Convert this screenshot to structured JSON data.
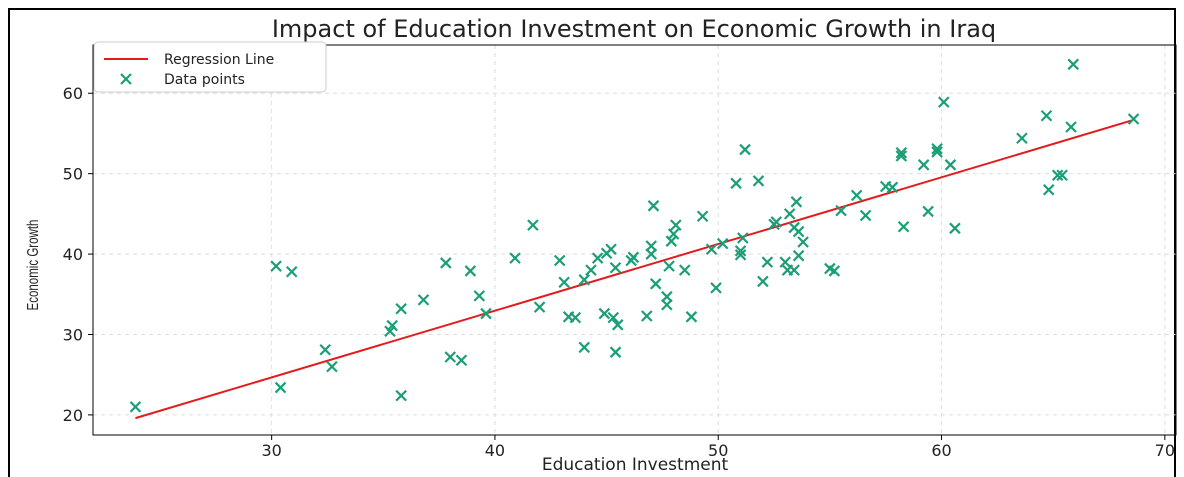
{
  "chart_data": {
    "type": "scatter",
    "title": "Impact of Education Investment on Economic Growth in Iraq",
    "xlabel": "Education Investment",
    "ylabel": "Economic Growth",
    "xlim": [
      22,
      70.5
    ],
    "ylim": [
      17.5,
      66
    ],
    "xticks": [
      30,
      40,
      50,
      60,
      70
    ],
    "yticks": [
      20,
      30,
      40,
      50,
      60
    ],
    "grid": true,
    "legend_position": "top-left",
    "series": [
      {
        "name": "Regression Line",
        "type": "line",
        "color": "#e41a1c",
        "x": [
          23.9,
          68.5
        ],
        "y": [
          19.6,
          56.6
        ]
      },
      {
        "name": "Data points",
        "type": "scatter",
        "marker": "x",
        "color": "#1b9e77",
        "x": [
          23.9,
          30.2,
          30.4,
          30.9,
          32.4,
          32.7,
          35.3,
          35.4,
          35.8,
          35.8,
          36.8,
          37.8,
          38.0,
          38.5,
          38.9,
          39.3,
          39.6,
          40.9,
          41.7,
          42.0,
          42.9,
          43.1,
          43.3,
          43.6,
          44.0,
          44.0,
          44.3,
          44.6,
          44.9,
          45.0,
          45.2,
          45.3,
          45.4,
          45.4,
          45.5,
          46.1,
          46.2,
          46.8,
          47.0,
          47.0,
          47.1,
          47.2,
          47.7,
          47.7,
          47.8,
          47.9,
          48.0,
          48.1,
          48.5,
          48.8,
          49.3,
          49.7,
          49.9,
          50.2,
          50.8,
          51.0,
          51.0,
          51.1,
          51.2,
          51.8,
          52.0,
          52.2,
          52.5,
          52.6,
          53.0,
          53.1,
          53.2,
          53.4,
          53.4,
          53.5,
          53.6,
          53.6,
          53.8,
          55.0,
          55.2,
          55.5,
          56.2,
          56.6,
          57.5,
          57.8,
          58.2,
          58.2,
          58.3,
          59.2,
          59.4,
          59.8,
          59.8,
          60.1,
          60.4,
          60.6,
          63.6,
          64.7,
          64.8,
          65.2,
          65.4,
          65.8,
          65.9,
          68.6
        ],
        "y": [
          21.0,
          38.5,
          23.4,
          37.8,
          28.1,
          26.0,
          30.4,
          31.1,
          22.4,
          33.2,
          34.3,
          38.9,
          27.2,
          26.8,
          37.9,
          34.8,
          32.6,
          39.5,
          43.6,
          33.4,
          39.2,
          36.5,
          32.2,
          32.1,
          28.4,
          36.8,
          38.0,
          39.5,
          32.6,
          40.1,
          40.6,
          32.1,
          27.8,
          38.3,
          31.2,
          39.2,
          39.6,
          32.3,
          41.0,
          40.0,
          46.0,
          36.3,
          33.7,
          34.7,
          38.5,
          41.6,
          42.5,
          43.6,
          38.0,
          32.2,
          44.7,
          40.6,
          35.8,
          41.3,
          48.8,
          40.4,
          39.9,
          42.0,
          53.0,
          49.1,
          36.6,
          39.0,
          43.7,
          44.0,
          39.0,
          38.0,
          45.0,
          38.0,
          43.3,
          46.5,
          42.8,
          39.8,
          41.5,
          38.2,
          37.9,
          45.4,
          47.3,
          44.8,
          48.4,
          48.3,
          52.6,
          52.2,
          43.4,
          51.1,
          45.3,
          53.1,
          52.7,
          58.9,
          51.1,
          43.2,
          54.4,
          57.2,
          48.0,
          49.8,
          49.8,
          55.8,
          63.6,
          56.8
        ]
      }
    ]
  }
}
